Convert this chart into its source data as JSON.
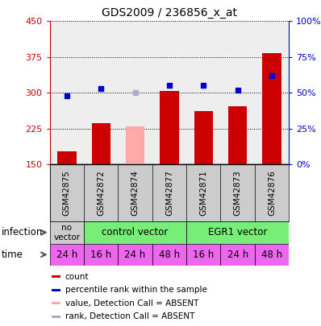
{
  "title": "GDS2009 / 236856_x_at",
  "samples": [
    "GSM42875",
    "GSM42872",
    "GSM42874",
    "GSM42877",
    "GSM42871",
    "GSM42873",
    "GSM42876"
  ],
  "count_values": [
    177,
    237,
    230,
    303,
    262,
    272,
    383
  ],
  "count_absent": [
    false,
    false,
    true,
    false,
    false,
    false,
    false
  ],
  "rank_values": [
    48,
    53,
    50,
    55,
    55,
    52,
    62
  ],
  "rank_absent": [
    false,
    false,
    true,
    false,
    false,
    false,
    false
  ],
  "ylim_left": [
    150,
    450
  ],
  "ylim_right": [
    0,
    100
  ],
  "yticks_left": [
    150,
    225,
    300,
    375,
    450
  ],
  "yticks_right": [
    0,
    25,
    50,
    75,
    100
  ],
  "ytick_labels_right": [
    "0%",
    "25%",
    "50%",
    "75%",
    "100%"
  ],
  "time_labels": [
    "24 h",
    "16 h",
    "24 h",
    "48 h",
    "16 h",
    "24 h",
    "48 h"
  ],
  "time_color": "#ee66ee",
  "no_vector_color": "#cccccc",
  "vector_color": "#77ee77",
  "bar_color_normal": "#cc0000",
  "bar_color_absent": "#ffaaaa",
  "dot_color_normal": "#0000cc",
  "dot_color_absent": "#aaaacc",
  "bar_width": 0.55,
  "legend_items": [
    {
      "color": "#cc0000",
      "label": "count"
    },
    {
      "color": "#0000cc",
      "label": "percentile rank within the sample"
    },
    {
      "color": "#ffaaaa",
      "label": "value, Detection Call = ABSENT"
    },
    {
      "color": "#aaaacc",
      "label": "rank, Detection Call = ABSENT"
    }
  ],
  "infection_label": "infection",
  "time_label": "time",
  "bg_color": "#ffffff",
  "plot_bg": "#eeeeee",
  "sample_bg": "#cccccc",
  "grid_color": "#000000"
}
